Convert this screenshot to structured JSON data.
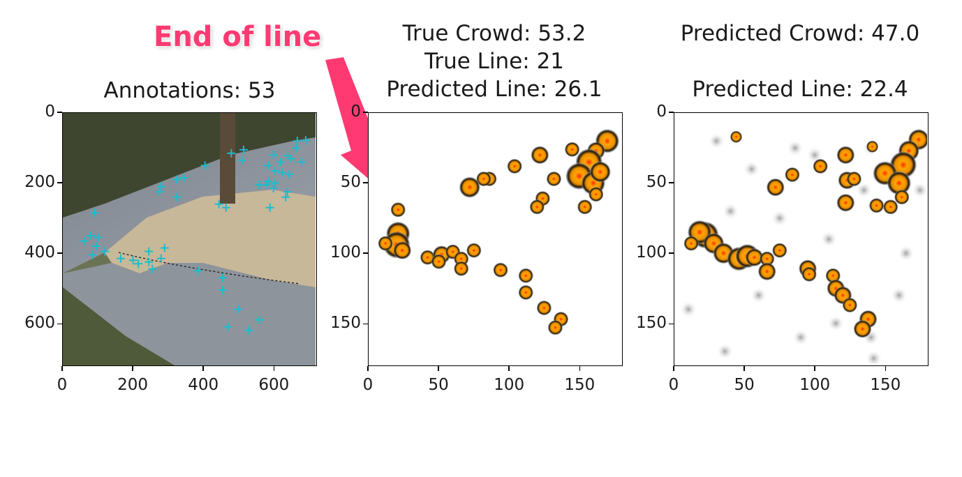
{
  "annotation": {
    "label": "End of line",
    "color": "#ff3a72"
  },
  "chart_data": [
    {
      "type": "scatter",
      "panel": "annotations",
      "title_lines": [
        "Annotations: 53"
      ],
      "xlim": [
        0,
        720
      ],
      "ylim": [
        720,
        0
      ],
      "x_ticks": [
        "0",
        "200",
        "400",
        "600"
      ],
      "y_ticks": [
        "0",
        "200",
        "400",
        "600"
      ],
      "marker": "+",
      "marker_color": "#17becf",
      "points": [
        [
          692,
          78
        ],
        [
          668,
          80
        ],
        [
          665,
          100
        ],
        [
          640,
          122
        ],
        [
          600,
          120
        ],
        [
          650,
          130
        ],
        [
          620,
          140
        ],
        [
          680,
          140
        ],
        [
          585,
          150
        ],
        [
          605,
          165
        ],
        [
          625,
          170
        ],
        [
          645,
          175
        ],
        [
          585,
          195
        ],
        [
          605,
          200
        ],
        [
          560,
          205
        ],
        [
          580,
          205
        ],
        [
          600,
          215
        ],
        [
          640,
          225
        ],
        [
          635,
          240
        ],
        [
          590,
          270
        ],
        [
          515,
          105
        ],
        [
          480,
          115
        ],
        [
          510,
          135
        ],
        [
          405,
          150
        ],
        [
          345,
          185
        ],
        [
          325,
          190
        ],
        [
          280,
          210
        ],
        [
          275,
          225
        ],
        [
          325,
          240
        ],
        [
          90,
          285
        ],
        [
          445,
          260
        ],
        [
          465,
          270
        ],
        [
          80,
          350
        ],
        [
          100,
          355
        ],
        [
          60,
          365
        ],
        [
          95,
          380
        ],
        [
          120,
          395
        ],
        [
          85,
          405
        ],
        [
          245,
          395
        ],
        [
          290,
          385
        ],
        [
          165,
          415
        ],
        [
          200,
          420
        ],
        [
          215,
          430
        ],
        [
          245,
          425
        ],
        [
          280,
          415
        ],
        [
          255,
          445
        ],
        [
          385,
          450
        ],
        [
          455,
          470
        ],
        [
          455,
          505
        ],
        [
          500,
          560
        ],
        [
          560,
          590
        ],
        [
          530,
          620
        ],
        [
          470,
          610
        ]
      ]
    },
    {
      "type": "heatmap",
      "panel": "true-density",
      "title_lines": [
        "True Crowd: 53.2",
        "True Line: 21",
        "Predicted Line: 26.1"
      ],
      "xlim": [
        0,
        180
      ],
      "ylim": [
        180,
        0
      ],
      "x_ticks": [
        "0",
        "50",
        "100",
        "150"
      ],
      "y_ticks": [
        "0",
        "50",
        "100",
        "150"
      ],
      "background": "#ffffff",
      "blobs": [
        [
          170,
          20,
          1.6
        ],
        [
          162,
          27,
          1.2
        ],
        [
          145,
          26,
          1
        ],
        [
          122,
          30,
          1.2
        ],
        [
          104,
          38,
          1
        ],
        [
          157,
          35,
          1.8
        ],
        [
          150,
          45,
          1.8
        ],
        [
          160,
          50,
          1.6
        ],
        [
          165,
          42,
          1.4
        ],
        [
          86,
          47,
          1
        ],
        [
          82,
          47,
          1
        ],
        [
          132,
          47,
          1
        ],
        [
          72,
          53,
          1.4
        ],
        [
          124,
          61,
          1
        ],
        [
          120,
          67,
          1
        ],
        [
          162,
          58,
          1
        ],
        [
          154,
          67,
          1
        ],
        [
          21,
          69,
          1
        ],
        [
          21,
          86,
          1.6
        ],
        [
          20,
          94,
          1.8
        ],
        [
          24,
          98,
          1.2
        ],
        [
          12,
          93,
          1
        ],
        [
          42,
          103,
          1
        ],
        [
          52,
          101,
          1.2
        ],
        [
          50,
          106,
          1
        ],
        [
          60,
          99,
          1
        ],
        [
          66,
          104,
          1
        ],
        [
          66,
          111,
          1
        ],
        [
          75,
          98,
          1
        ],
        [
          94,
          112,
          1
        ],
        [
          112,
          116,
          1
        ],
        [
          112,
          128,
          1
        ],
        [
          125,
          139,
          1
        ],
        [
          137,
          147,
          1
        ],
        [
          133,
          153,
          1
        ]
      ]
    },
    {
      "type": "heatmap",
      "panel": "predicted-density",
      "title_lines": [
        "Predicted Crowd: 47.0",
        "",
        "Predicted Line: 22.4"
      ],
      "xlim": [
        0,
        180
      ],
      "ylim": [
        180,
        0
      ],
      "x_ticks": [
        "0",
        "50",
        "100",
        "150"
      ],
      "y_ticks": [
        "0",
        "50",
        "100",
        "150"
      ],
      "background": "#ffffff",
      "noise": [
        [
          44,
          18
        ],
        [
          140,
          25
        ],
        [
          86,
          25
        ],
        [
          135,
          55
        ],
        [
          40,
          70
        ],
        [
          115,
          150
        ],
        [
          36,
          170
        ],
        [
          142,
          175
        ],
        [
          175,
          55
        ],
        [
          60,
          130
        ],
        [
          100,
          30
        ],
        [
          30,
          20
        ],
        [
          165,
          100
        ],
        [
          140,
          160
        ],
        [
          75,
          75
        ],
        [
          10,
          140
        ],
        [
          110,
          90
        ],
        [
          90,
          160
        ],
        [
          160,
          130
        ],
        [
          55,
          40
        ]
      ],
      "blobs": [
        [
          44,
          17,
          0.8
        ],
        [
          174,
          19,
          1.4
        ],
        [
          167,
          27,
          1.4
        ],
        [
          141,
          24,
          0.8
        ],
        [
          122,
          30,
          1.2
        ],
        [
          104,
          38,
          1
        ],
        [
          163,
          37,
          1.8
        ],
        [
          150,
          43,
          1.6
        ],
        [
          160,
          50,
          1.6
        ],
        [
          84,
          44,
          1
        ],
        [
          72,
          53,
          1.2
        ],
        [
          123,
          48,
          1.2
        ],
        [
          128,
          47,
          1
        ],
        [
          122,
          64,
          1.2
        ],
        [
          144,
          66,
          1
        ],
        [
          162,
          60,
          1
        ],
        [
          154,
          67,
          1
        ],
        [
          22,
          87,
          1.8
        ],
        [
          18,
          85,
          1.6
        ],
        [
          28,
          93,
          1.4
        ],
        [
          12,
          93,
          1
        ],
        [
          35,
          100,
          1.4
        ],
        [
          46,
          104,
          1.6
        ],
        [
          52,
          102,
          1.6
        ],
        [
          57,
          103,
          1.2
        ],
        [
          66,
          104,
          1
        ],
        [
          66,
          113,
          1.2
        ],
        [
          75,
          98,
          1
        ],
        [
          95,
          111,
          1.2
        ],
        [
          96,
          115,
          1
        ],
        [
          113,
          116,
          1
        ],
        [
          115,
          125,
          1.2
        ],
        [
          120,
          130,
          1.2
        ],
        [
          125,
          137,
          1
        ],
        [
          138,
          147,
          1.2
        ],
        [
          134,
          154,
          1.2
        ]
      ]
    }
  ]
}
